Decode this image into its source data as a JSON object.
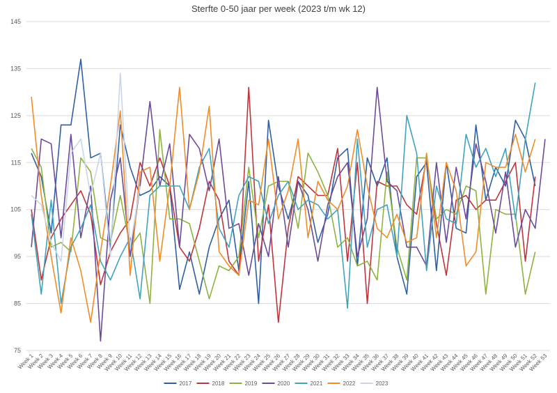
{
  "chart_data": {
    "type": "line",
    "title": "Sterfte 0-50 jaar per week (2023 t/m wk 12)",
    "xlabel": "",
    "ylabel": "",
    "ylim": [
      75,
      145
    ],
    "yticks": [
      75,
      85,
      95,
      105,
      115,
      125,
      135,
      145
    ],
    "grid": true,
    "legend_position": "bottom",
    "categories": [
      "Week 1",
      "Week 2",
      "Week 3",
      "Week 4",
      "Week 5",
      "Week 6",
      "Week 7",
      "Week 8",
      "Week 9",
      "Week 10",
      "Week 11",
      "Week 12",
      "Week 13",
      "Week 14",
      "Week 15",
      "Week 16",
      "Week 17",
      "Week 18",
      "Week 19",
      "Week 20",
      "Week 21",
      "Week 22",
      "Week 23",
      "Week 24",
      "Week 25",
      "Week 26",
      "Week 27",
      "Week 28",
      "Week 29",
      "Week 30",
      "Week 31",
      "Week 32",
      "Week 33",
      "Week 34",
      "Week 35",
      "Week 36",
      "Week 37",
      "Week 38",
      "Week 39",
      "Week 40",
      "Week 41",
      "Week 42",
      "Week 43",
      "Week 44",
      "Week 45",
      "Week 46",
      "Week 47",
      "Week 48",
      "Week 49",
      "Week 50",
      "Week 51",
      "Week 52",
      "Week 53"
    ],
    "series": [
      {
        "name": "2017",
        "color": "#2e5fa5",
        "values": [
          117,
          112,
          100,
          123,
          123,
          137,
          116,
          117,
          97,
          123,
          114,
          108,
          109,
          112,
          110,
          88,
          96,
          87,
          97,
          103,
          107,
          92,
          111,
          85,
          124,
          110,
          103,
          111,
          108,
          98,
          104,
          116,
          118,
          93,
          116,
          110,
          116,
          95,
          87,
          112,
          115,
          92,
          115,
          101,
          100,
          123,
          107,
          114,
          110,
          124,
          120,
          110,
          null
        ]
      },
      {
        "name": "2018",
        "color": "#c0333a",
        "values": [
          105,
          90,
          99,
          103,
          106,
          109,
          104,
          89,
          96,
          100,
          103,
          115,
          110,
          116,
          110,
          97,
          94,
          101,
          111,
          107,
          94,
          91,
          131,
          94,
          106,
          81,
          101,
          112,
          110,
          108,
          108,
          118,
          94,
          115,
          85,
          111,
          110,
          110,
          106,
          104,
          116,
          102,
          91,
          107,
          108,
          105,
          107,
          107,
          111,
          115,
          94,
          112,
          null
        ]
      },
      {
        "name": "2019",
        "color": "#8db33e",
        "values": [
          118,
          114,
          97,
          98,
          96,
          116,
          113,
          99,
          98,
          108,
          97,
          100,
          85,
          122,
          103,
          103,
          102,
          94,
          86,
          93,
          92,
          95,
          114,
          99,
          110,
          111,
          111,
          101,
          117,
          113,
          108,
          97,
          99,
          93,
          94,
          90,
          113,
          97,
          90,
          116,
          116,
          103,
          105,
          104,
          110,
          109,
          87,
          105,
          104,
          104,
          87,
          96,
          null
        ]
      },
      {
        "name": "2020",
        "color": "#6b4a9b",
        "values": [
          97,
          120,
          119,
          99,
          121,
          99,
          110,
          77,
          107,
          116,
          95,
          110,
          128,
          110,
          119,
          97,
          121,
          118,
          109,
          120,
          101,
          102,
          91,
          102,
          95,
          112,
          97,
          111,
          105,
          94,
          106,
          112,
          115,
          95,
          103,
          131,
          111,
          109,
          97,
          97,
          93,
          115,
          98,
          114,
          103,
          119,
          111,
          100,
          113,
          97,
          105,
          101,
          120
        ]
      },
      {
        "name": "2021",
        "color": "#3fa2bf",
        "values": [
          104,
          87,
          107,
          85,
          97,
          101,
          106,
          94,
          90,
          95,
          99,
          86,
          108,
          110,
          110,
          110,
          105,
          114,
          118,
          101,
          97,
          108,
          112,
          111,
          102,
          108,
          111,
          105,
          107,
          106,
          103,
          105,
          84,
          120,
          97,
          105,
          106,
          95,
          125,
          117,
          92,
          110,
          103,
          102,
          121,
          114,
          118,
          112,
          118,
          103,
          120,
          132,
          null
        ]
      },
      {
        "name": "2022",
        "color": "#f28c28",
        "values": [
          129,
          108,
          95,
          83,
          99,
          92,
          81,
          96,
          110,
          126,
          91,
          113,
          114,
          94,
          110,
          131,
          105,
          113,
          127,
          96,
          93,
          91,
          107,
          106,
          120,
          103,
          109,
          120,
          99,
          111,
          107,
          105,
          110,
          122,
          110,
          101,
          99,
          104,
          98,
          99,
          117,
          99,
          115,
          109,
          93,
          96,
          115,
          114,
          114,
          121,
          113,
          120,
          null
        ]
      },
      {
        "name": "2023",
        "color": "#c9d6ea",
        "values": [
          108,
          106,
          98,
          94,
          117,
          120,
          108,
          117,
          95,
          134,
          97,
          110,
          null,
          null,
          null,
          null,
          null,
          null,
          null,
          null,
          null,
          null,
          null,
          null,
          null,
          null,
          null,
          null,
          null,
          null,
          null,
          null,
          null,
          null,
          null,
          null,
          null,
          null,
          null,
          null,
          null,
          null,
          null,
          null,
          null,
          null,
          null,
          null,
          null,
          null,
          null,
          null,
          null
        ]
      }
    ]
  }
}
